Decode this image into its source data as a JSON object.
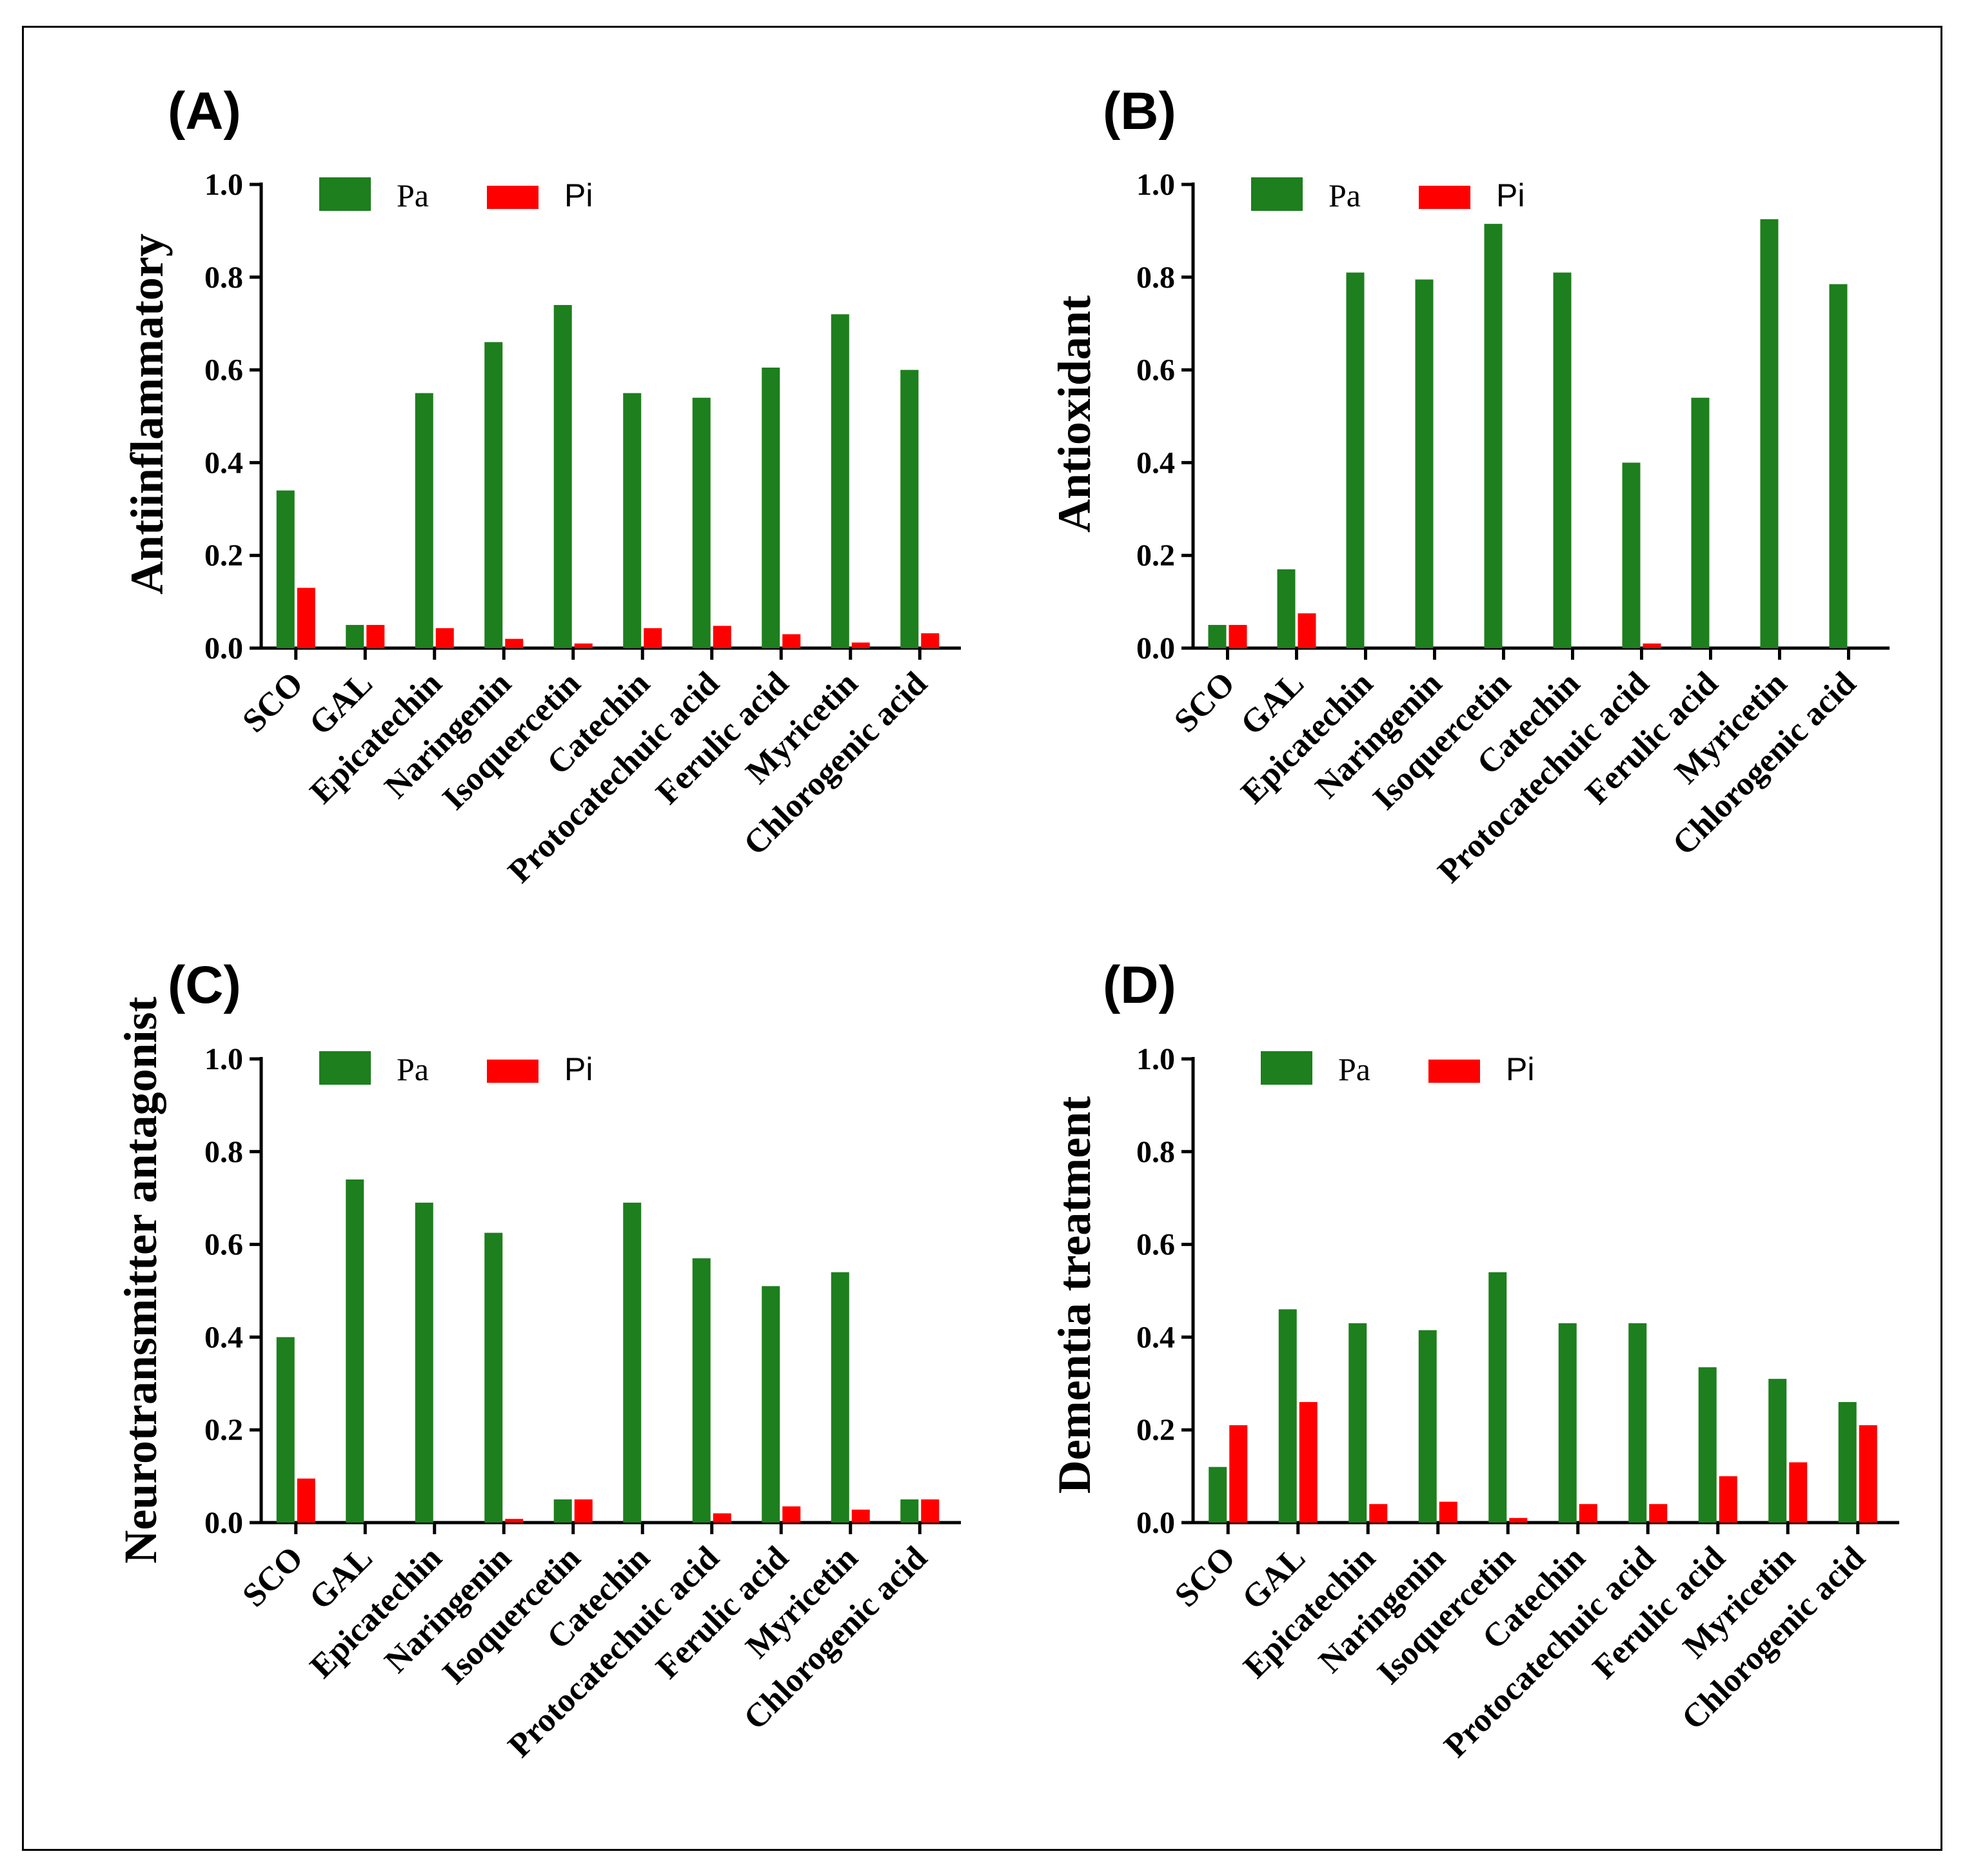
{
  "colors": {
    "pa": "#1d7f1d",
    "pi": "#ff0000",
    "axis": "#000000"
  },
  "legend": {
    "pa": "Pa",
    "pi": "Pi"
  },
  "chart_data": [
    {
      "panel": "(A)",
      "type": "bar",
      "ylabel": "Antiinflammatory",
      "ylim": [
        0,
        1.0
      ],
      "yticks": [
        "0.0",
        "0.2",
        "0.4",
        "0.6",
        "0.8",
        "1.0"
      ],
      "categories": [
        "SCO",
        "GAL",
        "Epicatechin",
        "Naringenin",
        "Isoquercetin",
        "Catechin",
        "Protocatechuic acid",
        "Ferulic acid",
        "Myricetin",
        "Chlorogenic acid"
      ],
      "series": [
        {
          "name": "Pa",
          "values": [
            0.34,
            0.05,
            0.55,
            0.66,
            0.74,
            0.55,
            0.54,
            0.605,
            0.72,
            0.6
          ]
        },
        {
          "name": "Pi",
          "values": [
            0.13,
            0.05,
            0.043,
            0.02,
            0.01,
            0.043,
            0.048,
            0.03,
            0.012,
            0.032
          ]
        }
      ]
    },
    {
      "panel": "(B)",
      "type": "bar",
      "ylabel": "Antioxidant",
      "ylim": [
        0,
        1.0
      ],
      "yticks": [
        "0.0",
        "0.2",
        "0.4",
        "0.6",
        "0.8",
        "1.0"
      ],
      "categories": [
        "SCO",
        "GAL",
        "Epicatechin",
        "Naringenin",
        "Isoquercetin",
        "Catechin",
        "Protocatechuic acid",
        "Ferulic acid",
        "Myricetin",
        "Chlorogenic acid"
      ],
      "series": [
        {
          "name": "Pa",
          "values": [
            0.05,
            0.17,
            0.81,
            0.795,
            0.915,
            0.81,
            0.4,
            0.54,
            0.925,
            0.785
          ]
        },
        {
          "name": "Pi",
          "values": [
            0.05,
            0.075,
            0.0,
            0.0,
            0.0,
            0.0,
            0.01,
            0.0,
            0.0,
            0.0
          ]
        }
      ]
    },
    {
      "panel": "(C)",
      "type": "bar",
      "ylabel": "Neurotransmitter antagonist",
      "ylim": [
        0,
        1.0
      ],
      "yticks": [
        "0.0",
        "0.2",
        "0.4",
        "0.6",
        "0.8",
        "1.0"
      ],
      "categories": [
        "SCO",
        "GAL",
        "Epicatechin",
        "Naringenin",
        "Isoquercetin",
        "Catechin",
        "Protocatechuic acid",
        "Ferulic acid",
        "Myricetin",
        "Chlorogenic acid"
      ],
      "series": [
        {
          "name": "Pa",
          "values": [
            0.4,
            0.74,
            0.69,
            0.625,
            0.05,
            0.69,
            0.57,
            0.51,
            0.54,
            0.05
          ]
        },
        {
          "name": "Pi",
          "values": [
            0.095,
            0.0,
            0.0,
            0.008,
            0.05,
            0.0,
            0.02,
            0.035,
            0.028,
            0.05
          ]
        }
      ]
    },
    {
      "panel": "(D)",
      "type": "bar",
      "ylabel": "Dementia treatment",
      "ylim": [
        0,
        1.0
      ],
      "yticks": [
        "0.0",
        "0.2",
        "0.4",
        "0.6",
        "0.8",
        "1.0"
      ],
      "categories": [
        "SCO",
        "GAL",
        "Epicatechin",
        "Naringenin",
        "Isoquercetin",
        "Catechin",
        "Protocatechuic acid",
        "Ferulic acid",
        "Myricetin",
        "Chlorogenic acid"
      ],
      "series": [
        {
          "name": "Pa",
          "values": [
            0.12,
            0.46,
            0.43,
            0.415,
            0.54,
            0.43,
            0.43,
            0.335,
            0.31,
            0.26
          ]
        },
        {
          "name": "Pi",
          "values": [
            0.21,
            0.26,
            0.04,
            0.045,
            0.01,
            0.04,
            0.04,
            0.1,
            0.13,
            0.21
          ]
        }
      ]
    }
  ]
}
